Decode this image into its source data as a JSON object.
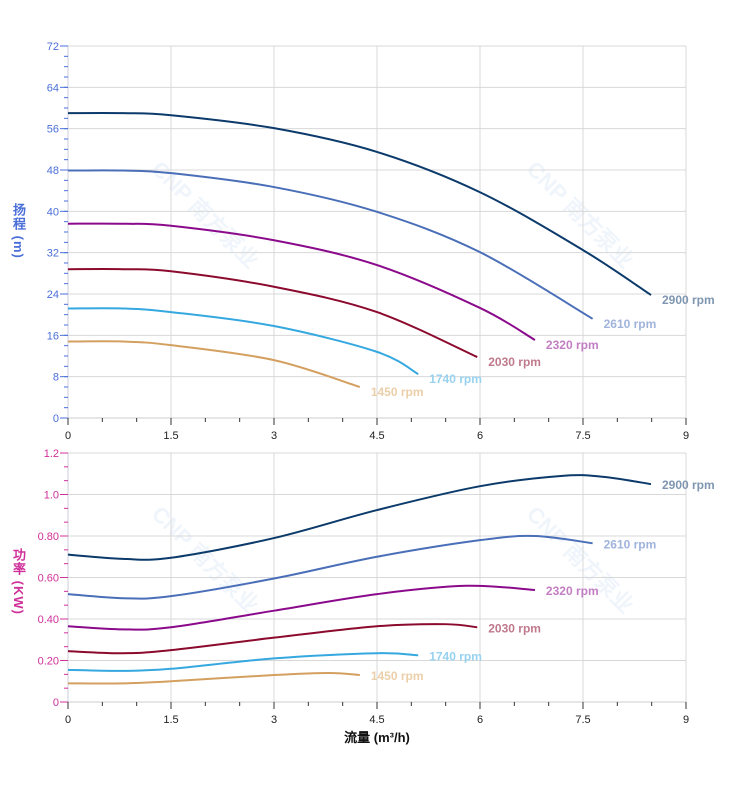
{
  "chart_data": [
    {
      "type": "line",
      "ylabel": "扬程 (m)",
      "xlim": [
        0,
        9
      ],
      "ylim": [
        0,
        72
      ],
      "xticks": [
        "0",
        "1.5",
        "3",
        "4.5",
        "6",
        "7.5",
        "9"
      ],
      "yticks": [
        "0",
        "8",
        "16",
        "24",
        "32",
        "40",
        "48",
        "56",
        "64",
        "72"
      ],
      "grid": true,
      "axis_color": "#4a6fd8",
      "series": [
        {
          "name": "2900 rpm",
          "color": "#0b3a6b",
          "label_color": "#7f96b0",
          "x": [
            0,
            0.8,
            1.5,
            3,
            4.5,
            6,
            7.5,
            8.49
          ],
          "y": [
            59,
            59,
            58.6,
            56.1,
            51.5,
            43.7,
            32.5,
            23.8
          ]
        },
        {
          "name": "2610 rpm",
          "color": "#4a6fb8",
          "label_color": "#9fb3db",
          "x": [
            0,
            0.8,
            1.5,
            3,
            4.5,
            6,
            7.64
          ],
          "y": [
            47.9,
            47.9,
            47.4,
            44.7,
            39.9,
            32.1,
            19.2
          ]
        },
        {
          "name": "2320 rpm",
          "color": "#8b0a8b",
          "label_color": "#c27ec2",
          "x": [
            0,
            0.8,
            1.5,
            3,
            4.5,
            6,
            6.8
          ],
          "y": [
            37.6,
            37.6,
            37.2,
            34.4,
            29.6,
            21.3,
            15.1
          ]
        },
        {
          "name": "2030 rpm",
          "color": "#8b0a2e",
          "label_color": "#c07a8c",
          "x": [
            0,
            0.8,
            1.5,
            3,
            4.5,
            5.96
          ],
          "y": [
            28.8,
            28.8,
            28.4,
            25.4,
            20.5,
            11.8
          ]
        },
        {
          "name": "1740 rpm",
          "color": "#35a8e0",
          "label_color": "#98d2ef",
          "x": [
            0,
            0.8,
            1.5,
            3,
            4.5,
            5.1
          ],
          "y": [
            21.2,
            21.2,
            20.5,
            17.8,
            12.8,
            8.5
          ]
        },
        {
          "name": "1450 rpm",
          "color": "#d4a060",
          "label_color": "#ebcfa9",
          "x": [
            0,
            0.8,
            1.5,
            3,
            4.25
          ],
          "y": [
            14.8,
            14.8,
            14.1,
            11.2,
            6.0
          ]
        }
      ]
    },
    {
      "type": "line",
      "xlabel": "流量 (m³/h)",
      "ylabel": "功率 (KW)",
      "xlim": [
        0,
        9
      ],
      "ylim": [
        0,
        1.2
      ],
      "xticks": [
        "0",
        "1.5",
        "3",
        "4.5",
        "6",
        "7.5",
        "9"
      ],
      "yticks": [
        "0",
        "0.20",
        "0.40",
        "0.60",
        "0.80",
        "1.0",
        "1.2"
      ],
      "grid": true,
      "axis_color": "#d0309a",
      "series": [
        {
          "name": "2900 rpm",
          "color": "#0b3a6b",
          "label_color": "#7f96b0",
          "x": [
            0,
            0.8,
            1.5,
            3,
            4.5,
            6,
            7.2,
            7.8,
            8.49
          ],
          "y": [
            0.71,
            0.69,
            0.695,
            0.79,
            0.925,
            1.04,
            1.09,
            1.085,
            1.05
          ]
        },
        {
          "name": "2610 rpm",
          "color": "#4a6fb8",
          "label_color": "#9fb3db",
          "x": [
            0,
            0.8,
            1.5,
            3,
            4.5,
            6,
            6.8,
            7.64
          ],
          "y": [
            0.52,
            0.5,
            0.51,
            0.595,
            0.7,
            0.78,
            0.8,
            0.765
          ]
        },
        {
          "name": "2320 rpm",
          "color": "#8b0a8b",
          "label_color": "#c27ec2",
          "x": [
            0,
            0.8,
            1.5,
            3,
            4.5,
            5.8,
            6.8
          ],
          "y": [
            0.365,
            0.35,
            0.36,
            0.44,
            0.52,
            0.56,
            0.54
          ]
        },
        {
          "name": "2030 rpm",
          "color": "#8b0a2e",
          "label_color": "#c07a8c",
          "x": [
            0,
            0.8,
            1.5,
            3,
            4.5,
            5.5,
            5.96
          ],
          "y": [
            0.245,
            0.235,
            0.25,
            0.31,
            0.365,
            0.375,
            0.36
          ]
        },
        {
          "name": "1740 rpm",
          "color": "#35a8e0",
          "label_color": "#98d2ef",
          "x": [
            0,
            0.8,
            1.5,
            3,
            4.5,
            5.1
          ],
          "y": [
            0.155,
            0.15,
            0.16,
            0.21,
            0.235,
            0.225
          ]
        },
        {
          "name": "1450 rpm",
          "color": "#d4a060",
          "label_color": "#ebcfa9",
          "x": [
            0,
            0.8,
            1.5,
            3,
            3.8,
            4.25
          ],
          "y": [
            0.09,
            0.09,
            0.1,
            0.13,
            0.14,
            0.13
          ]
        }
      ]
    }
  ],
  "watermark": "CNP 南方泵业"
}
